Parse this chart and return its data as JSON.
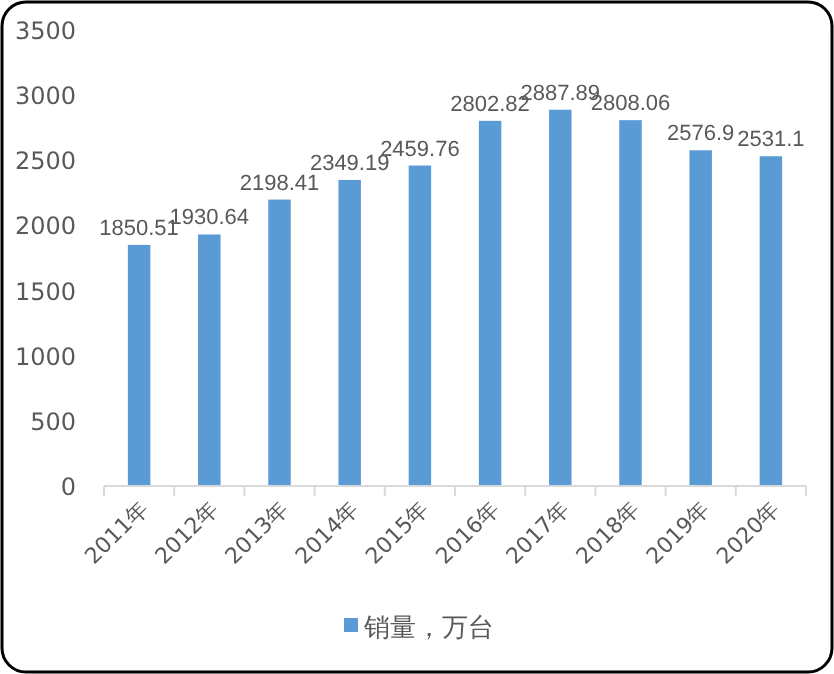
{
  "chart_data": {
    "type": "bar",
    "categories": [
      "2011年",
      "2012年",
      "2013年",
      "2014年",
      "2015年",
      "2016年",
      "2017年",
      "2018年",
      "2019年",
      "2020年"
    ],
    "series": [
      {
        "name": "销量，万台",
        "color": "#5b9bd5",
        "values": [
          1850.51,
          1930.64,
          2198.41,
          2349.19,
          2459.76,
          2802.82,
          2887.89,
          2808.06,
          2576.9,
          2531.1
        ]
      }
    ],
    "ylim": [
      0,
      3500
    ],
    "yticks": [
      0,
      500,
      1000,
      1500,
      2000,
      2500,
      3000,
      3500
    ],
    "data_labels": true,
    "legend": "bottom",
    "grid": false
  }
}
